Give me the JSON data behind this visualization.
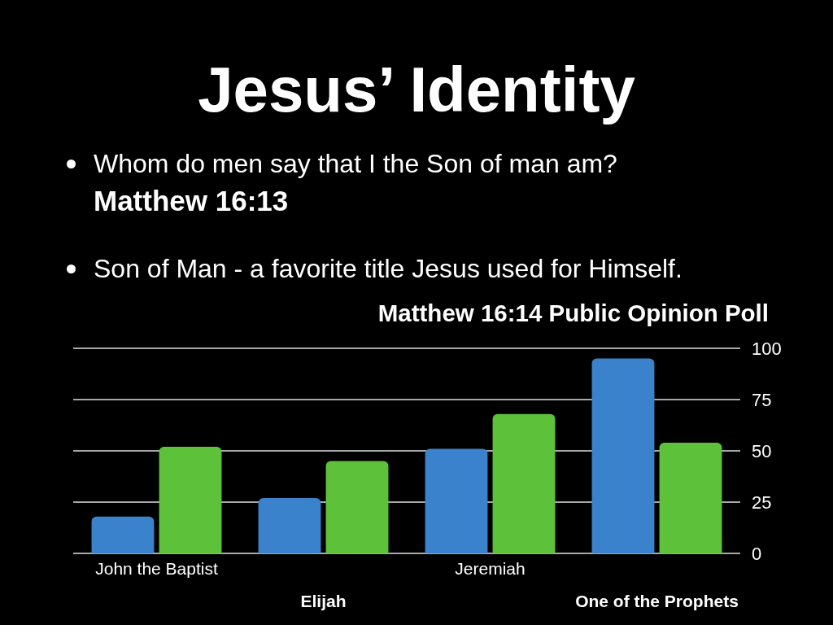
{
  "chart_data": {
    "type": "bar",
    "title": "Jesus’ Identity",
    "subtitle": "Matthew 16:14 Public Opinion Poll",
    "annotations": [
      "Whom do men say that I the Son of man am?",
      "Matthew 16:13",
      "Son of Man - a favorite title Jesus used for Himself."
    ],
    "categories": [
      "John the Baptist",
      "Elijah",
      "Jeremiah",
      "One of the Prophets"
    ],
    "series": [
      {
        "color": "#3b82cc",
        "values": [
          18,
          27,
          51,
          95
        ]
      },
      {
        "color": "#5dc13a",
        "values": [
          52,
          45,
          68,
          54
        ]
      }
    ],
    "ylim": [
      0,
      100
    ],
    "yticks": [
      0,
      25,
      50,
      75,
      100
    ],
    "grid": true
  }
}
